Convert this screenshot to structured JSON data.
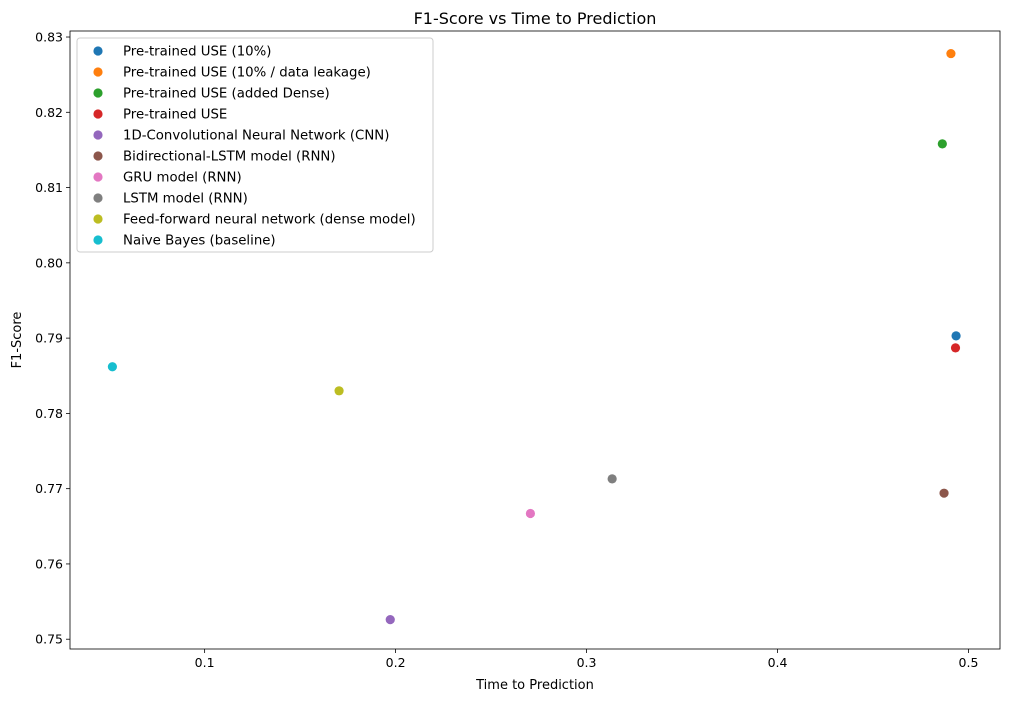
{
  "chart_data": {
    "type": "scatter",
    "title": "F1-Score vs Time to Prediction",
    "xlabel": "Time to Prediction",
    "ylabel": "F1-Score",
    "xlim": [
      0.0295,
      0.5165
    ],
    "ylim": [
      0.7487,
      0.8308
    ],
    "xticks": [
      0.1,
      0.2,
      0.3,
      0.4,
      0.5
    ],
    "xtick_labels": [
      "0.1",
      "0.2",
      "0.3",
      "0.4",
      "0.5"
    ],
    "yticks": [
      0.75,
      0.76,
      0.77,
      0.78,
      0.79,
      0.8,
      0.81,
      0.82,
      0.83
    ],
    "ytick_labels": [
      "0.75",
      "0.76",
      "0.77",
      "0.78",
      "0.79",
      "0.80",
      "0.81",
      "0.82",
      "0.83"
    ],
    "grid": false,
    "legend_position": "top-left",
    "series": [
      {
        "name": "Pre-trained USE (10%)",
        "color": "#1f77b4",
        "x": 0.4935,
        "y": 0.7903
      },
      {
        "name": "Pre-trained USE (10% / data leakage)",
        "color": "#ff7f0e",
        "x": 0.4908,
        "y": 0.8278
      },
      {
        "name": "Pre-trained USE (added Dense)",
        "color": "#2ca02c",
        "x": 0.4863,
        "y": 0.8158
      },
      {
        "name": "Pre-trained USE",
        "color": "#d62728",
        "x": 0.4932,
        "y": 0.7887
      },
      {
        "name": "1D-Convolutional Neural Network (CNN)",
        "color": "#9467bd",
        "x": 0.1972,
        "y": 0.7526
      },
      {
        "name": "Bidirectional-LSTM model (RNN)",
        "color": "#8c564b",
        "x": 0.4872,
        "y": 0.7694
      },
      {
        "name": "GRU model (RNN)",
        "color": "#e377c2",
        "x": 0.2706,
        "y": 0.7667
      },
      {
        "name": "LSTM model (RNN)",
        "color": "#7f7f7f",
        "x": 0.3134,
        "y": 0.7713
      },
      {
        "name": "Feed-forward neural network (dense model)",
        "color": "#bcbd22",
        "x": 0.1704,
        "y": 0.783
      },
      {
        "name": "Naive Bayes (baseline)",
        "color": "#17becf",
        "x": 0.0517,
        "y": 0.7862
      }
    ]
  }
}
